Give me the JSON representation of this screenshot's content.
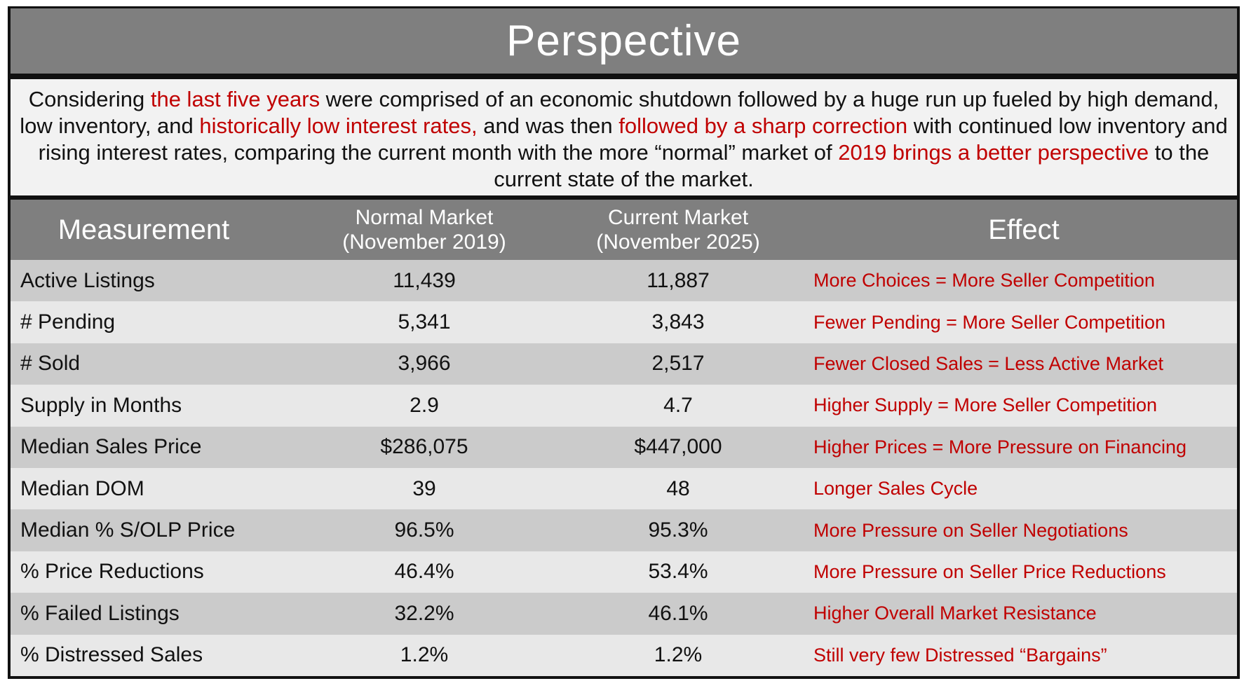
{
  "title": "Perspective",
  "intro": {
    "segments": [
      {
        "text": "Considering ",
        "highlight": false
      },
      {
        "text": "the last five years",
        "highlight": true
      },
      {
        "text": " were comprised of an economic shutdown followed by a huge run up fueled by high demand, low inventory, and ",
        "highlight": false
      },
      {
        "text": "historically low interest rates,",
        "highlight": true
      },
      {
        "text": " and was then ",
        "highlight": false
      },
      {
        "text": "followed by a sharp correction",
        "highlight": true
      },
      {
        "text": " with continued low inventory and rising interest rates, comparing the current month with the more “normal” market of ",
        "highlight": false
      },
      {
        "text": "2019 brings a better perspective",
        "highlight": true
      },
      {
        "text": " to the current state of the market.",
        "highlight": false
      }
    ]
  },
  "table": {
    "headers": {
      "measurement": "Measurement",
      "normal_line1": "Normal Market",
      "normal_line2": "(November 2019)",
      "current_line1": "Current Market",
      "current_line2": "(November 2025)",
      "effect": "Effect"
    },
    "rows": [
      {
        "measurement": "Active Listings",
        "normal": "11,439",
        "current": "11,887",
        "effect": "More Choices = More Seller Competition"
      },
      {
        "measurement": "# Pending",
        "normal": "5,341",
        "current": "3,843",
        "effect": "Fewer Pending = More Seller Competition"
      },
      {
        "measurement": "# Sold",
        "normal": "3,966",
        "current": "2,517",
        "effect": "Fewer Closed Sales = Less Active Market"
      },
      {
        "measurement": "Supply in Months",
        "normal": "2.9",
        "current": "4.7",
        "effect": "Higher Supply = More Seller Competition"
      },
      {
        "measurement": "Median Sales Price",
        "normal": "$286,075",
        "current": "$447,000",
        "effect": "Higher Prices = More Pressure on Financing"
      },
      {
        "measurement": "Median DOM",
        "normal": "39",
        "current": "48",
        "effect": "Longer Sales Cycle"
      },
      {
        "measurement": "Median % S/OLP Price",
        "normal": "96.5%",
        "current": "95.3%",
        "effect": "More Pressure on Seller Negotiations"
      },
      {
        "measurement": "% Price Reductions",
        "normal": "46.4%",
        "current": "53.4%",
        "effect": "More Pressure on Seller Price Reductions"
      },
      {
        "measurement": "% Failed Listings",
        "normal": "32.2%",
        "current": "46.1%",
        "effect": "Higher Overall Market Resistance"
      },
      {
        "measurement": "% Distressed Sales",
        "normal": "1.2%",
        "current": "1.2%",
        "effect": "Still very few Distressed “Bargains”"
      }
    ]
  },
  "colors": {
    "accent_red": "#c00000",
    "header_gray": "#7f7f7f",
    "row_dark": "#cbcbcb",
    "row_light": "#e8e8e8"
  }
}
